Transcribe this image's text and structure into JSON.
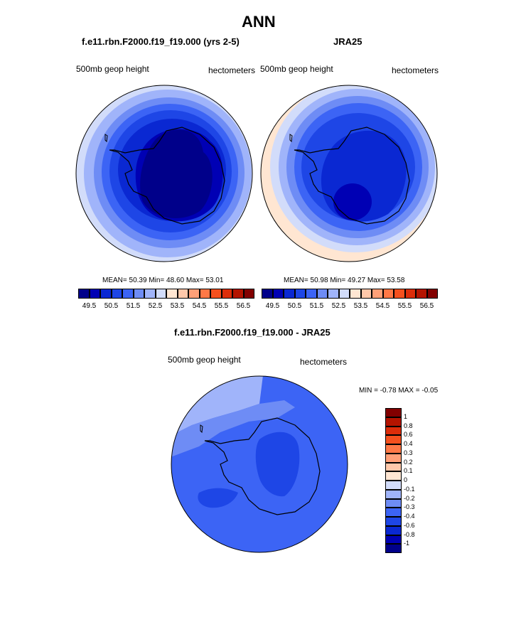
{
  "title": "ANN",
  "panels": {
    "model": {
      "case_title": "f.e11.rbn.F2000.f19_f19.000 (yrs 2-5)",
      "variable": "500mb geop height",
      "units": "hectometers",
      "stats": "MEAN=  50.39  Min=  48.60  Max=  53.01"
    },
    "obs": {
      "case_title": "JRA25",
      "variable": "500mb geop height",
      "units": "hectometers",
      "stats": "MEAN=  50.98  Min=  49.27  Max=  53.58"
    },
    "diff": {
      "case_title": "f.e11.rbn.F2000.f19_f19.000 - JRA25",
      "variable": "500mb geop height",
      "units": "hectometers",
      "stats": "MIN =  -0.78 MAX =  -0.05"
    }
  },
  "colorbar_main": {
    "labels": [
      "49.5",
      "50.5",
      "51.5",
      "52.5",
      "53.5",
      "54.5",
      "55.5",
      "56.5"
    ],
    "colors": [
      "#00008a",
      "#0000b4",
      "#0a28d2",
      "#1e46e6",
      "#3c64f5",
      "#6e8cf5",
      "#a0b4fa",
      "#d2dcfa",
      "#ffe6d2",
      "#ffc8aa",
      "#ffa078",
      "#ff7846",
      "#f5501e",
      "#dc2d0a",
      "#b41400",
      "#820000"
    ]
  },
  "colorbar_diff": {
    "labels": [
      "1",
      "0.8",
      "0.6",
      "0.4",
      "0.3",
      "0.2",
      "0.1",
      "0",
      "-0.1",
      "-0.2",
      "-0.3",
      "-0.4",
      "-0.6",
      "-0.8",
      "-1"
    ],
    "colors": [
      "#820000",
      "#b41400",
      "#dc2d0a",
      "#f5501e",
      "#ff7846",
      "#ffa078",
      "#ffc8aa",
      "#ffe6d2",
      "#d2dcfa",
      "#a0b4fa",
      "#6e8cf5",
      "#3c64f5",
      "#1e46e6",
      "#0a28d2",
      "#0000b4",
      "#00008a"
    ]
  },
  "map_colors": {
    "land_outline": "#000000",
    "model_rings": [
      "#d2dcfa",
      "#a0b4fa",
      "#6e8cf5",
      "#3c64f5",
      "#1e46e6",
      "#0a28d2",
      "#0000b4",
      "#00008a"
    ],
    "obs_rings": [
      "#ffe6d2",
      "#d2dcfa",
      "#a0b4fa",
      "#6e8cf5",
      "#3c64f5",
      "#1e46e6",
      "#0a28d2",
      "#0000b4"
    ],
    "diff_fill": [
      "#a0b4fa",
      "#6e8cf5",
      "#3c64f5",
      "#1e46e6",
      "#0a28d2"
    ]
  }
}
